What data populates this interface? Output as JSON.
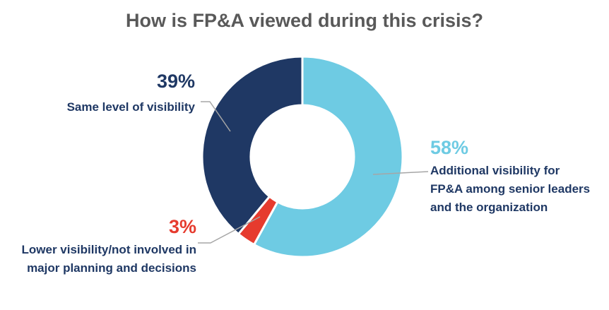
{
  "chart_data": {
    "type": "pie",
    "title": "How is FP&A viewed during this crisis?",
    "donut": true,
    "slices": [
      {
        "label": "Additional visibility for FP&A among senior leaders and the organization",
        "value": 58,
        "value_label": "58%",
        "color": "#6ecbe3"
      },
      {
        "label": "Lower visibility/not involved in major planning and decisions",
        "value": 3,
        "value_label": "3%",
        "color": "#e63b2e"
      },
      {
        "label": "Same level of visibility",
        "value": 39,
        "value_label": "39%",
        "color": "#1f3864"
      }
    ]
  },
  "labels": {
    "same": {
      "pct": "39%",
      "line1": "Same level of visibility"
    },
    "additional": {
      "pct": "58%",
      "line1": "Additional visibility for",
      "line2": "FP&A among senior leaders",
      "line3": "and the organization"
    },
    "lower": {
      "pct": "3%",
      "line1": "Lower visibility/not involved in",
      "line2": "major planning and decisions"
    }
  },
  "colors": {
    "title": "#595959",
    "label_text": "#1f3864",
    "leader_line": "#a6a6a6"
  }
}
